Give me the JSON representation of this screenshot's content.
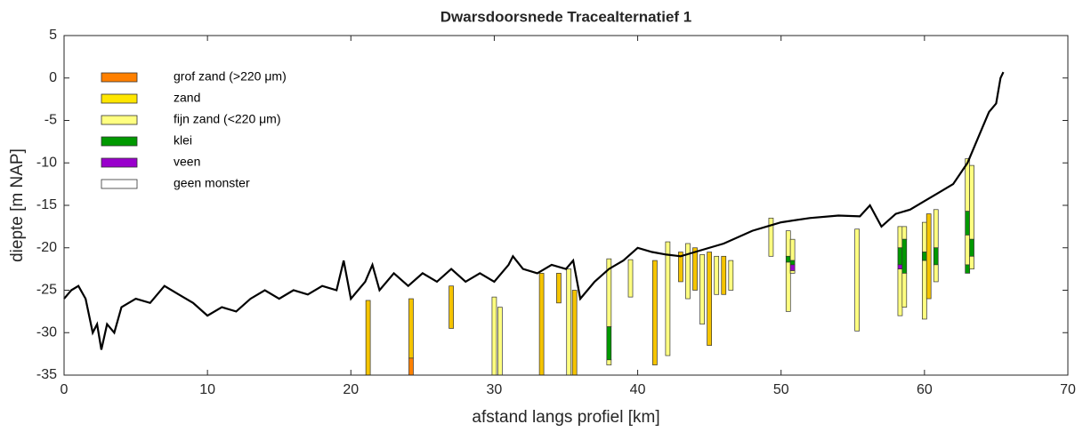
{
  "chart_data": {
    "type": "line",
    "title": "Dwarsdoorsnede Tracealternatief 1",
    "xlabel": "afstand langs profiel [km]",
    "ylabel": "diepte [m NAP]",
    "xlim": [
      0,
      70
    ],
    "xticks": [
      0,
      10,
      20,
      30,
      40,
      50,
      60,
      70
    ],
    "ylim": [
      -35,
      5
    ],
    "yticks": [
      5,
      0,
      -5,
      -10,
      -15,
      -20,
      -25,
      -30,
      -35
    ],
    "legend_position": "upper left",
    "legend": [
      {
        "name": "grof zand (>220 μm)",
        "color": "#ff8000"
      },
      {
        "name": "zand",
        "color": "#ffe600"
      },
      {
        "name": "fijn zand (<220 μm)",
        "color": "#ffff80"
      },
      {
        "name": "klei",
        "color": "#009900"
      },
      {
        "name": "veen",
        "color": "#9900cc"
      },
      {
        "name": "geen monster",
        "color": "#ffffff"
      }
    ],
    "line_color": "#000000",
    "x": [
      0,
      0.5,
      1,
      1.5,
      2,
      2.3,
      2.6,
      3,
      3.5,
      4,
      5,
      6,
      7,
      8,
      9,
      10,
      11,
      12,
      13,
      14,
      15,
      16,
      17,
      18,
      19,
      19.5,
      20,
      21,
      21.5,
      22,
      23,
      24,
      25,
      26,
      27,
      28,
      29,
      30,
      31,
      31.3,
      32,
      33,
      34,
      35,
      35.5,
      36,
      37,
      38,
      39,
      40,
      41,
      42,
      43,
      44,
      46,
      48,
      50,
      52,
      54,
      55.5,
      56.2,
      57,
      58,
      59,
      60,
      61,
      62,
      63,
      64,
      64.5,
      65,
      65.3,
      65.5
    ],
    "values": [
      -26,
      -25,
      -24.5,
      -26,
      -30,
      -29,
      -32,
      -29,
      -30,
      -27,
      -26,
      -26.5,
      -24.5,
      -25.5,
      -26.5,
      -28,
      -27,
      -27.5,
      -26,
      -25,
      -26,
      -25,
      -25.5,
      -24.5,
      -25,
      -21.5,
      -26,
      -24,
      -22,
      -25,
      -23,
      -24.5,
      -23,
      -24,
      -22.5,
      -24,
      -23,
      -24,
      -22,
      -21,
      -22.5,
      -23,
      -22,
      -22.5,
      -21.5,
      -26,
      -24,
      -22.5,
      -21.5,
      -20,
      -20.5,
      -20.8,
      -21,
      -20.5,
      -19.5,
      -18,
      -17,
      -16.5,
      -16.2,
      -16.3,
      -15,
      -17.5,
      -16,
      -15.5,
      -14.5,
      -13.5,
      -12.5,
      -10,
      -6,
      -4,
      -3,
      0,
      0.7
    ],
    "boreholes": [
      {
        "x": 21.2,
        "layers": [
          {
            "top": -26.2,
            "bottom": -35,
            "color": "#f5c400"
          }
        ]
      },
      {
        "x": 24.2,
        "layers": [
          {
            "top": -26,
            "bottom": -33,
            "color": "#f5c400"
          },
          {
            "top": -33,
            "bottom": -35,
            "color": "#ff8000"
          }
        ]
      },
      {
        "x": 27,
        "layers": [
          {
            "top": -24.5,
            "bottom": -29.5,
            "color": "#f5c400"
          }
        ]
      },
      {
        "x": 30,
        "layers": [
          {
            "top": -25.8,
            "bottom": -35,
            "color": "#ffff80"
          }
        ]
      },
      {
        "x": 30.4,
        "layers": [
          {
            "top": -27,
            "bottom": -35,
            "color": "#ffff80"
          }
        ]
      },
      {
        "x": 33.3,
        "layers": [
          {
            "top": -23,
            "bottom": -35,
            "color": "#f5c400"
          }
        ]
      },
      {
        "x": 34.5,
        "layers": [
          {
            "top": -23,
            "bottom": -26.5,
            "color": "#f5c400"
          }
        ]
      },
      {
        "x": 35.2,
        "layers": [
          {
            "top": -22.5,
            "bottom": -35,
            "color": "#ffff80"
          }
        ]
      },
      {
        "x": 35.6,
        "layers": [
          {
            "top": -25,
            "bottom": -35,
            "color": "#f5c400"
          }
        ]
      },
      {
        "x": 38,
        "layers": [
          {
            "top": -21.3,
            "bottom": -29.3,
            "color": "#ffff80"
          },
          {
            "top": -29.3,
            "bottom": -33.2,
            "color": "#009900"
          },
          {
            "top": -33.2,
            "bottom": -33.8,
            "color": "#ffff80"
          }
        ]
      },
      {
        "x": 39.5,
        "layers": [
          {
            "top": -21.4,
            "bottom": -25.8,
            "color": "#ffff80"
          }
        ]
      },
      {
        "x": 41.2,
        "layers": [
          {
            "top": -21.5,
            "bottom": -33.8,
            "color": "#f5c400"
          }
        ]
      },
      {
        "x": 42.1,
        "layers": [
          {
            "top": -19.3,
            "bottom": -32.7,
            "color": "#ffff80"
          }
        ]
      },
      {
        "x": 43,
        "layers": [
          {
            "top": -20.5,
            "bottom": -24,
            "color": "#f5c400"
          }
        ]
      },
      {
        "x": 43.5,
        "layers": [
          {
            "top": -19.5,
            "bottom": -26,
            "color": "#ffff80"
          }
        ]
      },
      {
        "x": 44,
        "layers": [
          {
            "top": -20,
            "bottom": -25,
            "color": "#f5c400"
          }
        ]
      },
      {
        "x": 44.5,
        "layers": [
          {
            "top": -20.8,
            "bottom": -29,
            "color": "#ffff80"
          }
        ]
      },
      {
        "x": 45,
        "layers": [
          {
            "top": -20.5,
            "bottom": -31.5,
            "color": "#f5c400"
          }
        ]
      },
      {
        "x": 45.5,
        "layers": [
          {
            "top": -21,
            "bottom": -25.5,
            "color": "#ffff80"
          }
        ]
      },
      {
        "x": 46,
        "layers": [
          {
            "top": -21,
            "bottom": -25.5,
            "color": "#f5c400"
          }
        ]
      },
      {
        "x": 46.5,
        "layers": [
          {
            "top": -21.5,
            "bottom": -25,
            "color": "#ffff80"
          }
        ]
      },
      {
        "x": 49.3,
        "layers": [
          {
            "top": -16.5,
            "bottom": -21,
            "color": "#ffff80"
          }
        ]
      },
      {
        "x": 50.5,
        "layers": [
          {
            "top": -18,
            "bottom": -21,
            "color": "#ffff80"
          },
          {
            "top": -21,
            "bottom": -21.7,
            "color": "#009900"
          },
          {
            "top": -21.7,
            "bottom": -27.5,
            "color": "#ffff80"
          }
        ]
      },
      {
        "x": 50.8,
        "layers": [
          {
            "top": -19,
            "bottom": -21.5,
            "color": "#ffff80"
          },
          {
            "top": -21.5,
            "bottom": -22,
            "color": "#009900"
          },
          {
            "top": -22,
            "bottom": -22.7,
            "color": "#9900cc"
          },
          {
            "top": -22.7,
            "bottom": -23,
            "color": "#ffff80"
          }
        ]
      },
      {
        "x": 55.3,
        "layers": [
          {
            "top": -17.8,
            "bottom": -29.8,
            "color": "#ffff80"
          }
        ]
      },
      {
        "x": 58.3,
        "layers": [
          {
            "top": -17.5,
            "bottom": -20,
            "color": "#ffff80"
          },
          {
            "top": -20,
            "bottom": -22,
            "color": "#009900"
          },
          {
            "top": -22,
            "bottom": -22.5,
            "color": "#9900cc"
          },
          {
            "top": -22.5,
            "bottom": -28,
            "color": "#ffff80"
          }
        ]
      },
      {
        "x": 58.6,
        "layers": [
          {
            "top": -17.5,
            "bottom": -19,
            "color": "#ffff80"
          },
          {
            "top": -19,
            "bottom": -23,
            "color": "#009900"
          },
          {
            "top": -23,
            "bottom": -27,
            "color": "#ffff80"
          }
        ]
      },
      {
        "x": 60,
        "layers": [
          {
            "top": -17,
            "bottom": -20.5,
            "color": "#ffff80"
          },
          {
            "top": -20.5,
            "bottom": -21.5,
            "color": "#009900"
          },
          {
            "top": -21.5,
            "bottom": -28.4,
            "color": "#ffff80"
          }
        ]
      },
      {
        "x": 60.3,
        "layers": [
          {
            "top": -16,
            "bottom": -26,
            "color": "#f5c400"
          }
        ]
      },
      {
        "x": 60.8,
        "layers": [
          {
            "top": -15.5,
            "bottom": -20,
            "color": "#ffff80"
          },
          {
            "top": -20,
            "bottom": -22,
            "color": "#009900"
          },
          {
            "top": -22,
            "bottom": -24,
            "color": "#ffff80"
          }
        ]
      },
      {
        "x": 63,
        "layers": [
          {
            "top": -9.5,
            "bottom": -15.7,
            "color": "#ffff80"
          },
          {
            "top": -15.7,
            "bottom": -18.5,
            "color": "#009900"
          },
          {
            "top": -18.5,
            "bottom": -22,
            "color": "#ffff80"
          },
          {
            "top": -22,
            "bottom": -23,
            "color": "#009900"
          }
        ]
      },
      {
        "x": 63.3,
        "layers": [
          {
            "top": -10.3,
            "bottom": -19,
            "color": "#ffff80"
          },
          {
            "top": -19,
            "bottom": -21,
            "color": "#009900"
          },
          {
            "top": -21,
            "bottom": -22.5,
            "color": "#ffff80"
          }
        ]
      }
    ]
  }
}
